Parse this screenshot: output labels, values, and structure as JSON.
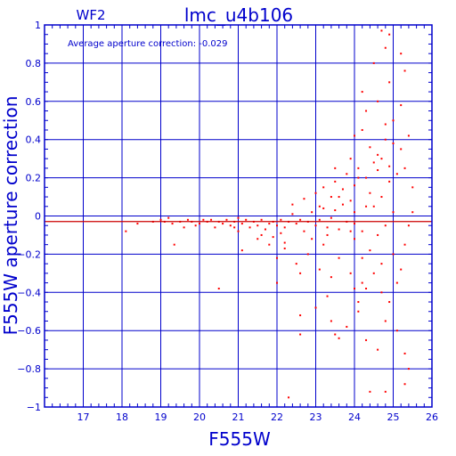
{
  "chart_data": {
    "type": "scatter",
    "title": "lmc_u4b106",
    "chip_label": "WF2",
    "annotation": "Average aperture correction:  -0.029",
    "xlabel": "F555W",
    "ylabel": "F555W aperture correction",
    "xlim": [
      16,
      26
    ],
    "ylim": [
      -1,
      1
    ],
    "x_ticks": [
      17,
      18,
      19,
      20,
      21,
      22,
      23,
      24,
      25,
      26
    ],
    "y_ticks": [
      1,
      0.8,
      0.6,
      0.4,
      0.2,
      0,
      -0.2,
      -0.4,
      -0.6,
      -0.8,
      -1
    ],
    "grid": true,
    "reference_line": -0.029,
    "colors": {
      "frame": "#0000cc",
      "points": "#ff0000",
      "reference": "#cc0000"
    },
    "points": [
      [
        18.1,
        -0.08
      ],
      [
        18.4,
        -0.04
      ],
      [
        18.8,
        -0.03
      ],
      [
        19.0,
        -0.02
      ],
      [
        19.1,
        -0.03
      ],
      [
        19.2,
        -0.01
      ],
      [
        19.3,
        -0.04
      ],
      [
        19.35,
        -0.15
      ],
      [
        19.5,
        -0.03
      ],
      [
        19.6,
        -0.06
      ],
      [
        19.7,
        -0.02
      ],
      [
        19.8,
        -0.03
      ],
      [
        19.9,
        -0.05
      ],
      [
        20.0,
        -0.04
      ],
      [
        20.1,
        -0.02
      ],
      [
        20.2,
        -0.03
      ],
      [
        20.3,
        -0.02
      ],
      [
        20.4,
        -0.06
      ],
      [
        20.5,
        -0.03
      ],
      [
        20.6,
        -0.04
      ],
      [
        20.7,
        -0.02
      ],
      [
        20.8,
        -0.05
      ],
      [
        20.9,
        -0.03
      ],
      [
        21.0,
        -0.01
      ],
      [
        21.0,
        -0.08
      ],
      [
        21.1,
        -0.04
      ],
      [
        21.2,
        -0.02
      ],
      [
        21.3,
        -0.06
      ],
      [
        21.4,
        -0.03
      ],
      [
        21.5,
        -0.05
      ],
      [
        21.6,
        -0.02
      ],
      [
        21.7,
        -0.07
      ],
      [
        21.8,
        -0.04
      ],
      [
        21.9,
        -0.03
      ],
      [
        22.0,
        -0.05
      ],
      [
        22.1,
        -0.02
      ],
      [
        22.2,
        -0.06
      ],
      [
        22.3,
        -0.03
      ],
      [
        22.4,
        0.01
      ],
      [
        22.5,
        -0.04
      ],
      [
        22.6,
        -0.02
      ],
      [
        22.7,
        -0.08
      ],
      [
        22.8,
        -0.03
      ],
      [
        22.9,
        0.02
      ],
      [
        23.0,
        -0.05
      ],
      [
        23.1,
        -0.02
      ],
      [
        23.2,
        0.04
      ],
      [
        23.3,
        -0.06
      ],
      [
        23.4,
        -0.01
      ],
      [
        23.5,
        0.03
      ],
      [
        23.6,
        -0.07
      ],
      [
        23.7,
        0.06
      ],
      [
        23.8,
        -0.03
      ],
      [
        23.9,
        0.08
      ],
      [
        24.0,
        -0.04
      ],
      [
        21.1,
        -0.18
      ],
      [
        21.5,
        -0.12
      ],
      [
        21.8,
        -0.15
      ],
      [
        22.0,
        -0.22
      ],
      [
        22.2,
        -0.17
      ],
      [
        22.5,
        -0.25
      ],
      [
        22.8,
        -0.2
      ],
      [
        20.5,
        -0.38
      ],
      [
        22.0,
        -0.35
      ],
      [
        22.6,
        -0.3
      ],
      [
        23.1,
        -0.28
      ],
      [
        23.3,
        -0.42
      ],
      [
        22.4,
        0.06
      ],
      [
        22.7,
        0.09
      ],
      [
        23.0,
        0.12
      ],
      [
        23.2,
        0.15
      ],
      [
        23.4,
        0.1
      ],
      [
        23.5,
        0.18
      ],
      [
        23.7,
        0.14
      ],
      [
        23.8,
        0.22
      ],
      [
        24.0,
        0.16
      ],
      [
        24.1,
        0.25
      ],
      [
        24.3,
        0.2
      ],
      [
        24.5,
        0.28
      ],
      [
        24.6,
        0.32
      ],
      [
        24.8,
        0.4
      ],
      [
        24.2,
        0.45
      ],
      [
        24.4,
        0.36
      ],
      [
        24.7,
        0.3
      ],
      [
        24.9,
        0.26
      ],
      [
        25.1,
        0.22
      ],
      [
        25.2,
        0.35
      ],
      [
        24.3,
        0.55
      ],
      [
        24.6,
        0.6
      ],
      [
        24.9,
        0.7
      ],
      [
        25.0,
        0.5
      ],
      [
        24.5,
        0.8
      ],
      [
        24.8,
        0.88
      ],
      [
        24.7,
        0.97
      ],
      [
        24.9,
        0.95
      ],
      [
        25.2,
        0.85
      ],
      [
        25.3,
        0.76
      ],
      [
        24.2,
        0.65
      ],
      [
        23.5,
        0.25
      ],
      [
        23.9,
        0.3
      ],
      [
        24.0,
        0.42
      ],
      [
        22.6,
        -0.52
      ],
      [
        23.0,
        -0.48
      ],
      [
        23.4,
        -0.55
      ],
      [
        23.5,
        -0.62
      ],
      [
        23.8,
        -0.58
      ],
      [
        24.1,
        -0.5
      ],
      [
        24.3,
        -0.65
      ],
      [
        24.6,
        -0.7
      ],
      [
        24.8,
        -0.55
      ],
      [
        24.9,
        -0.45
      ],
      [
        25.1,
        -0.6
      ],
      [
        25.3,
        -0.72
      ],
      [
        25.4,
        -0.8
      ],
      [
        24.2,
        -0.35
      ],
      [
        24.5,
        -0.3
      ],
      [
        24.7,
        -0.25
      ],
      [
        25.0,
        -0.2
      ],
      [
        25.2,
        -0.28
      ],
      [
        25.3,
        -0.15
      ],
      [
        25.4,
        -0.05
      ],
      [
        25.5,
        0.02
      ],
      [
        25.5,
        0.15
      ],
      [
        25.3,
        0.25
      ],
      [
        25.4,
        0.42
      ],
      [
        24.0,
        -0.12
      ],
      [
        24.2,
        -0.08
      ],
      [
        24.4,
        -0.18
      ],
      [
        24.6,
        -0.1
      ],
      [
        24.8,
        -0.05
      ],
      [
        23.6,
        -0.22
      ],
      [
        23.9,
        -0.3
      ],
      [
        24.1,
        -0.45
      ],
      [
        24.3,
        -0.38
      ],
      [
        22.3,
        -0.95
      ],
      [
        24.8,
        -0.92
      ],
      [
        25.3,
        -0.88
      ],
      [
        22.6,
        -0.62
      ],
      [
        23.6,
        -0.64
      ],
      [
        24.0,
        -0.38
      ],
      [
        24.4,
        -0.92
      ],
      [
        25.0,
        0.02
      ],
      [
        24.7,
        0.1
      ],
      [
        24.3,
        0.05
      ],
      [
        23.9,
        -0.08
      ],
      [
        23.3,
        -0.1
      ],
      [
        22.9,
        -0.12
      ],
      [
        22.1,
        -0.09
      ],
      [
        21.6,
        -0.1
      ],
      [
        20.9,
        -0.06
      ],
      [
        24.5,
        0.05
      ],
      [
        24.9,
        0.18
      ],
      [
        25.1,
        -0.35
      ],
      [
        24.4,
        0.12
      ],
      [
        23.1,
        0.05
      ],
      [
        23.6,
        0.1
      ],
      [
        25.2,
        0.58
      ],
      [
        24.1,
        0.2
      ],
      [
        24.7,
        -0.4
      ],
      [
        23.4,
        -0.32
      ],
      [
        24.0,
        0.02
      ],
      [
        24.6,
        0.24
      ],
      [
        22.2,
        -0.14
      ],
      [
        21.9,
        -0.11
      ],
      [
        23.2,
        -0.15
      ],
      [
        24.8,
        0.48
      ],
      [
        25.0,
        0.38
      ],
      [
        24.2,
        -0.22
      ]
    ]
  }
}
